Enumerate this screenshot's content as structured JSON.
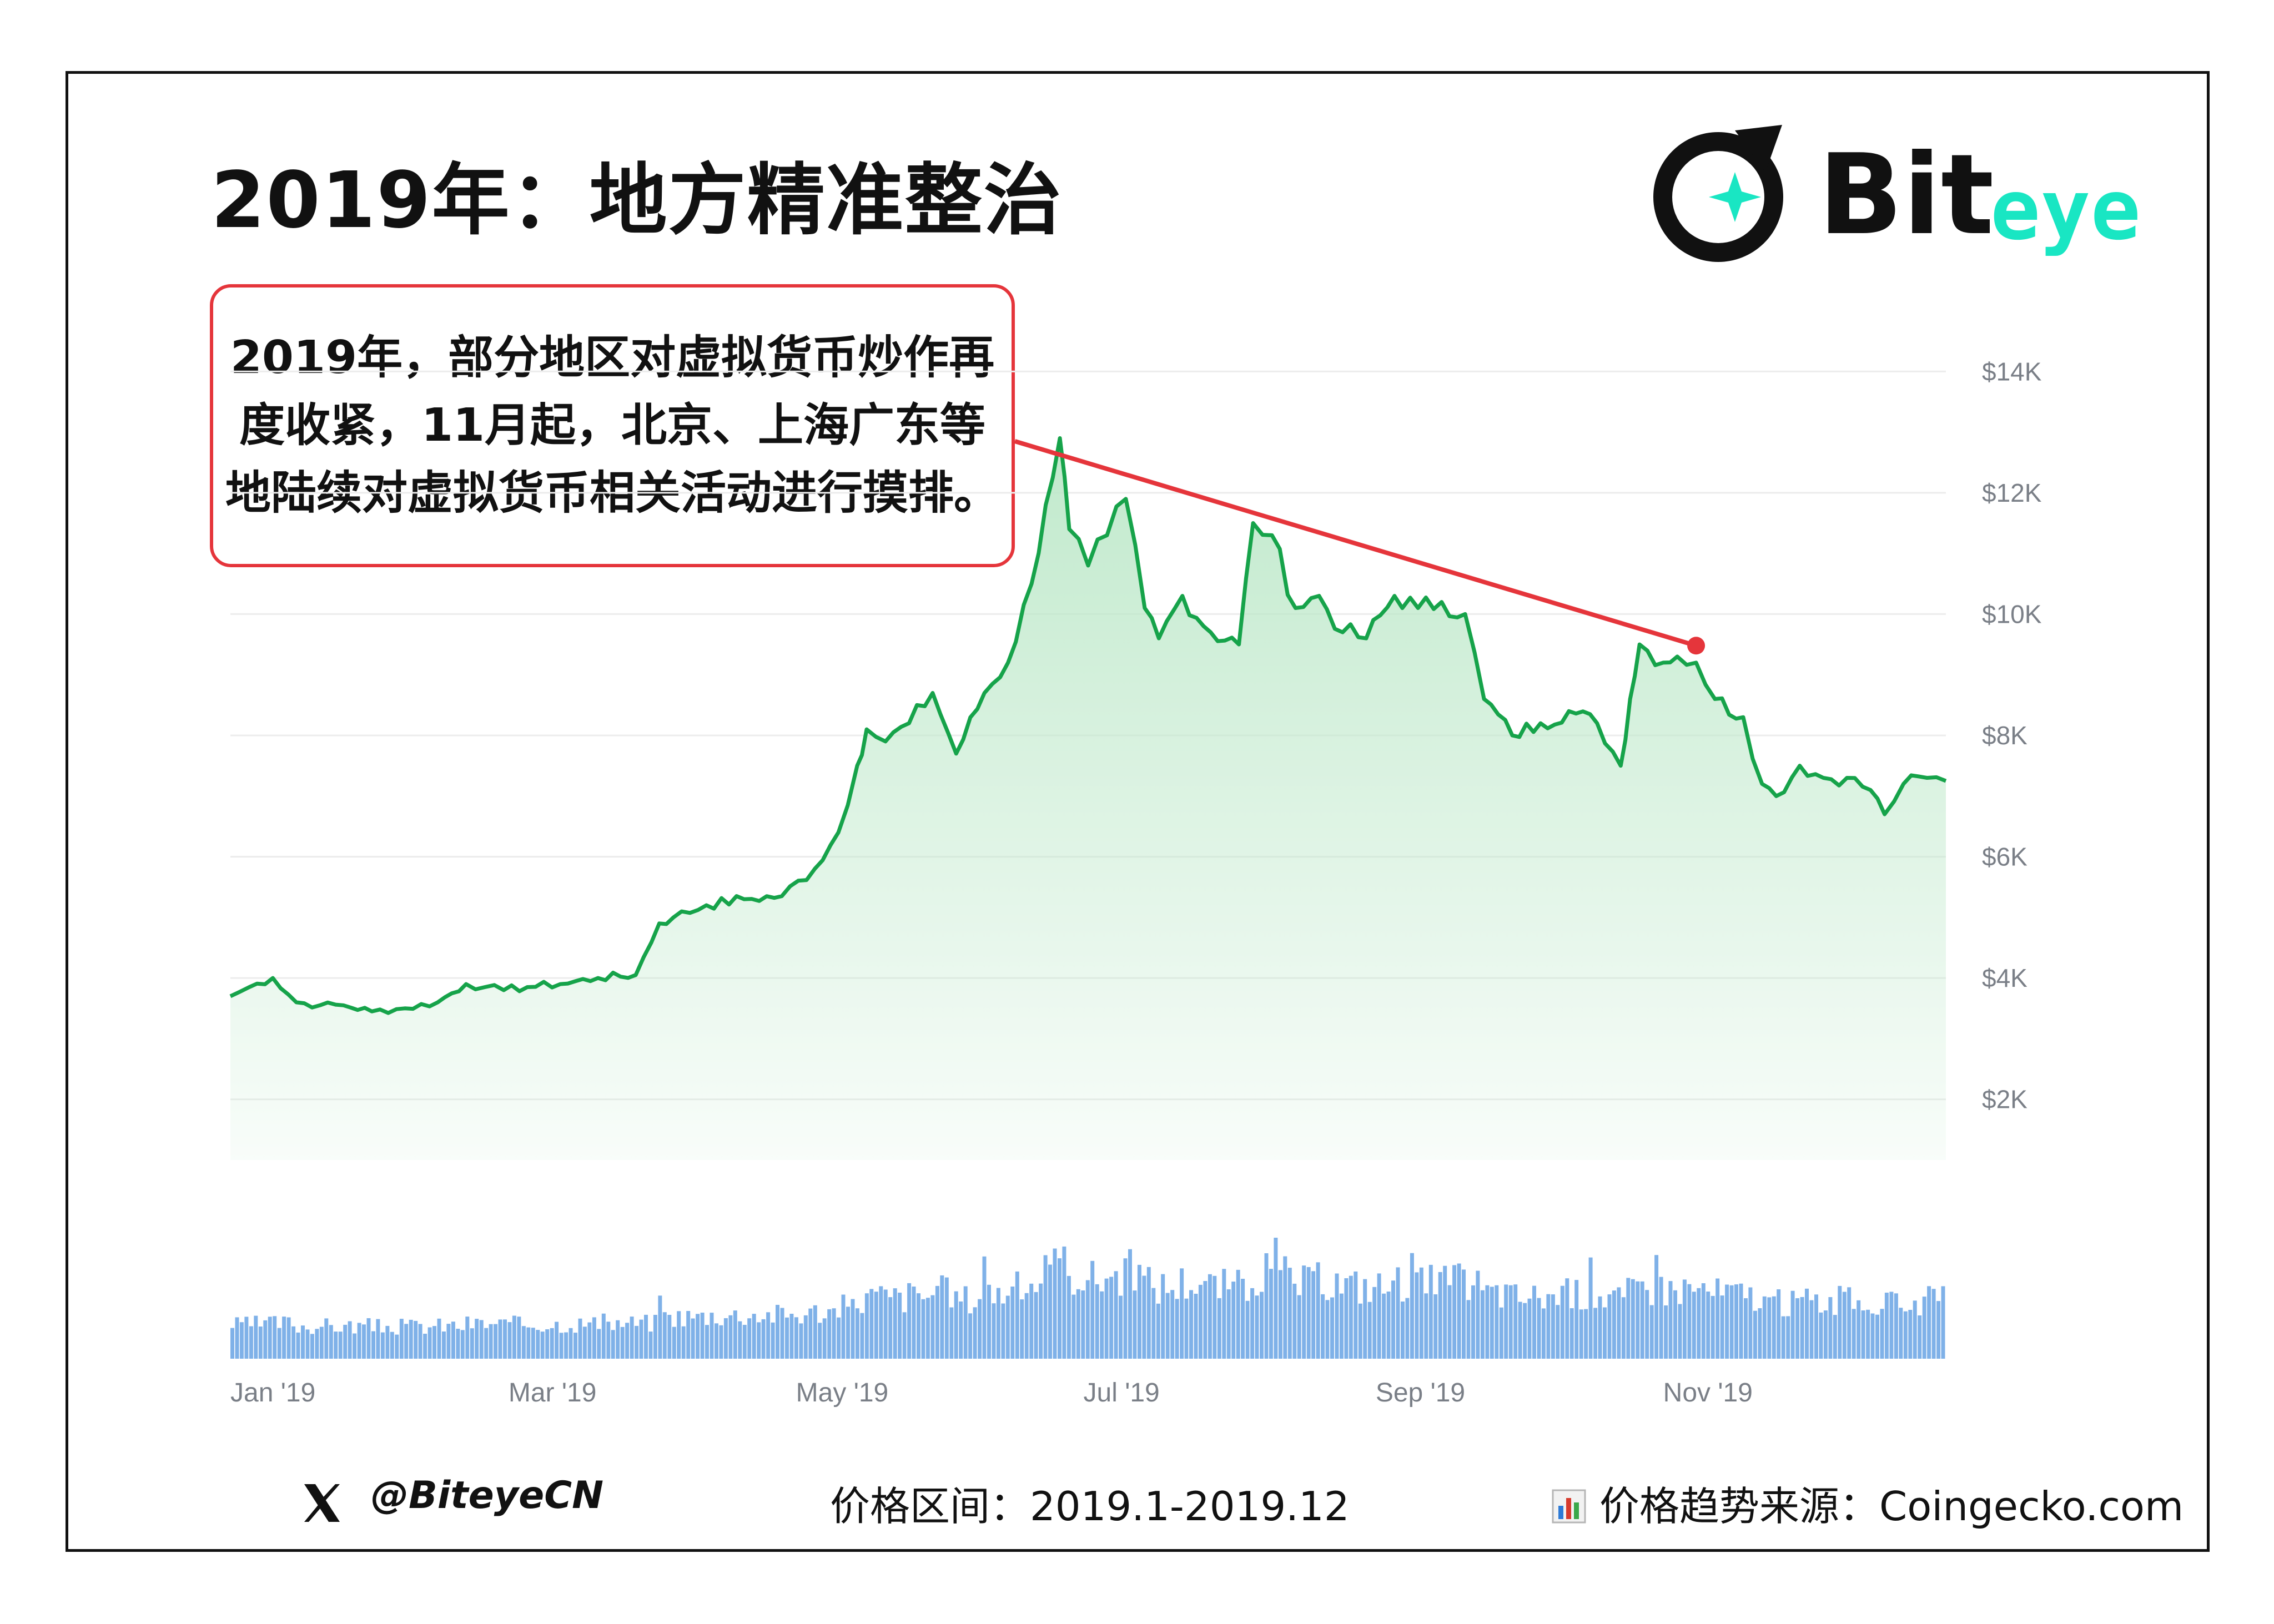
{
  "page": {
    "title": "2019年：地方精准整治",
    "logo_text": "Biteye",
    "callout_lines": [
      "2019年，部分地区对虚拟货币炒作再",
      "度收紧，11月起，北京、上海广东等",
      "地陆续对虚拟货币相关活动进行摸排。"
    ],
    "footer": {
      "handle": "@BiteyeCN",
      "range": "价格区间：2019.1-2019.12",
      "source": "价格趋势来源：Coingecko.com",
      "handle_icon": "x-icon",
      "source_icon": "bar-chart-icon"
    }
  },
  "colors": {
    "price_line": "#16a34a",
    "area_fill": "#bde8c9",
    "volume_bar": "#7fb1e8",
    "callout_border": "#e5353b",
    "trend_line": "#e5353b",
    "logo_accent": "#19e6c3",
    "axis_text": "#7a7f87"
  },
  "chart_data": {
    "type": "area",
    "title": "",
    "xlabel": "",
    "ylabel": "",
    "ylim": [
      1000,
      15000
    ],
    "grid": true,
    "y_ticks": [
      2000,
      4000,
      6000,
      8000,
      10000,
      12000,
      14000
    ],
    "y_tick_labels": [
      "$2K",
      "$4K",
      "$6K",
      "$8K",
      "$10K",
      "$12K",
      "$14K"
    ],
    "x_range": [
      "2019-01-01",
      "2019-12-31"
    ],
    "x_ticks": [
      "2019-01-01",
      "2019-03-01",
      "2019-05-01",
      "2019-07-01",
      "2019-09-01",
      "2019-11-01"
    ],
    "x_tick_labels": [
      "Jan '19",
      "Mar '19",
      "May '19",
      "Jul '19",
      "Sep '19",
      "Nov '19"
    ],
    "series": [
      {
        "values_note_omitted": true,
        "x": [
          "2019-01-01",
          "2019-01-05",
          "2019-01-10",
          "2019-01-15",
          "2019-01-20",
          "2019-01-25",
          "2019-01-31",
          "2019-02-07",
          "2019-02-14",
          "2019-02-20",
          "2019-02-24",
          "2019-02-28",
          "2019-03-05",
          "2019-03-12",
          "2019-03-20",
          "2019-03-28",
          "2019-04-02",
          "2019-04-05",
          "2019-04-12",
          "2019-04-20",
          "2019-04-28",
          "2019-05-05",
          "2019-05-10",
          "2019-05-14",
          "2019-05-16",
          "2019-05-20",
          "2019-05-25",
          "2019-05-30",
          "2019-06-04",
          "2019-06-10",
          "2019-06-15",
          "2019-06-20",
          "2019-06-23",
          "2019-06-26",
          "2019-06-28",
          "2019-07-02",
          "2019-07-06",
          "2019-07-10",
          "2019-07-14",
          "2019-07-17",
          "2019-07-22",
          "2019-07-28",
          "2019-08-03",
          "2019-08-06",
          "2019-08-10",
          "2019-08-15",
          "2019-08-20",
          "2019-08-25",
          "2019-08-30",
          "2019-09-05",
          "2019-09-10",
          "2019-09-15",
          "2019-09-20",
          "2019-09-24",
          "2019-09-30",
          "2019-10-06",
          "2019-10-12",
          "2019-10-18",
          "2019-10-23",
          "2019-10-25",
          "2019-10-27",
          "2019-11-01",
          "2019-11-04",
          "2019-11-08",
          "2019-11-12",
          "2019-11-18",
          "2019-11-22",
          "2019-11-25",
          "2019-11-30",
          "2019-12-05",
          "2019-12-10",
          "2019-12-15",
          "2019-12-18",
          "2019-12-22",
          "2019-12-27",
          "2019-12-31"
        ],
        "values": [
          3700,
          3850,
          4000,
          3600,
          3550,
          3550,
          3450,
          3500,
          3600,
          3900,
          3850,
          3800,
          3850,
          3900,
          4000,
          4050,
          4900,
          5000,
          5200,
          5300,
          5350,
          5800,
          6400,
          7500,
          8100,
          7900,
          8200,
          8700,
          7700,
          8700,
          9200,
          10500,
          11800,
          12900,
          11400,
          10800,
          11300,
          11900,
          10100,
          9600,
          10300,
          9700,
          9500,
          11500,
          11300,
          10100,
          10300,
          9700,
          9600,
          10300,
          10100,
          10200,
          10000,
          8600,
          8000,
          8200,
          8400,
          8200,
          7500,
          8600,
          9500,
          9200,
          9300,
          9200,
          8600,
          8300,
          7200,
          7000,
          7500,
          7300,
          7300,
          7100,
          6700,
          7200,
          7300,
          7250
        ]
      }
    ],
    "volume": {
      "note": "relative daily trading volume shown as bars beneath the price chart"
    },
    "annotation": {
      "type": "trend_line",
      "from": {
        "x": "2019-06-26",
        "y": 12400
      },
      "to": {
        "x": "2019-11-08",
        "y": 9480
      }
    }
  }
}
